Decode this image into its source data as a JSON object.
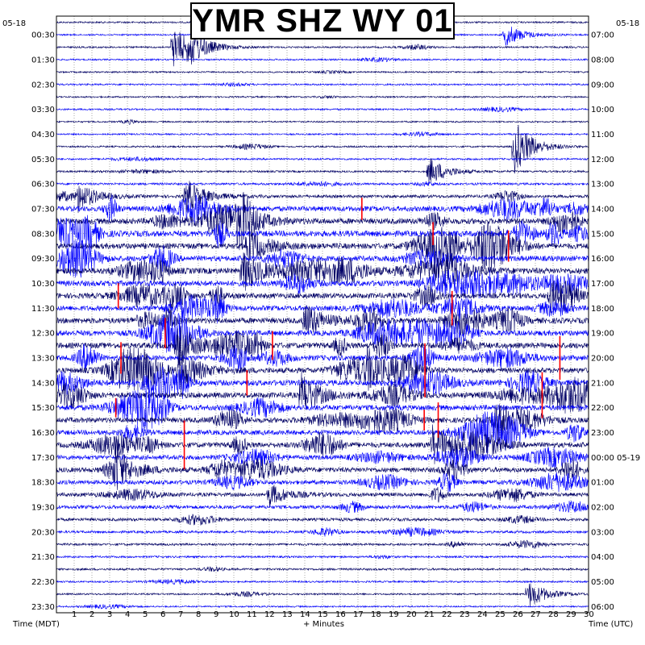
{
  "title": "YMR SHZ WY 01",
  "left_date": "05-18",
  "right_date": "05-18",
  "xlabel": "+ Minutes",
  "left_axis_label": "Time (MDT)",
  "right_axis_label": "Time (UTC)",
  "colors": {
    "navy": "#000066",
    "blue": "#0000ff",
    "red": "#ff0000",
    "grid": "#555555",
    "frame": "#000000"
  },
  "chart_data": {
    "type": "line",
    "title": "YMR SHZ WY 01",
    "xlabel": "+ Minutes",
    "x_range": [
      0,
      30
    ],
    "x_ticks": [
      1,
      2,
      3,
      4,
      5,
      6,
      7,
      8,
      9,
      10,
      11,
      12,
      13,
      14,
      15,
      16,
      17,
      18,
      19,
      20,
      21,
      22,
      23,
      24,
      25,
      26,
      27,
      28,
      29,
      30
    ],
    "rows_count": 48,
    "row_minutes": 30,
    "left_ticks": [
      "00:30",
      "01:30",
      "02:30",
      "03:30",
      "04:30",
      "05:30",
      "06:30",
      "07:30",
      "08:30",
      "09:30",
      "10:30",
      "11:30",
      "12:30",
      "13:30",
      "14:30",
      "15:30",
      "16:30",
      "17:30",
      "18:30",
      "19:30",
      "20:30",
      "21:30",
      "22:30",
      "23:30"
    ],
    "right_ticks": [
      "07:00",
      "08:00",
      "09:00",
      "10:00",
      "11:00",
      "12:00",
      "13:00",
      "14:00",
      "15:00",
      "16:00",
      "17:00",
      "18:00",
      "19:00",
      "20:00",
      "21:00",
      "22:00",
      "23:00",
      "00:00 05-19",
      "01:00",
      "02:00",
      "03:00",
      "04:00",
      "05:00",
      "06:00"
    ],
    "grid": true,
    "trace_colors": [
      "navy",
      "blue"
    ],
    "clipped_color": "red",
    "row_activity": [
      0.15,
      0.12,
      0.15,
      0.12,
      0.12,
      0.15,
      0.12,
      0.15,
      0.12,
      0.12,
      0.15,
      0.18,
      0.2,
      0.25,
      0.4,
      0.8,
      0.9,
      0.95,
      0.9,
      0.85,
      0.95,
      0.9,
      0.85,
      0.8,
      0.9,
      0.85,
      0.9,
      0.85,
      0.85,
      0.9,
      0.9,
      0.85,
      0.8,
      0.75,
      0.8,
      0.7,
      0.75,
      0.65,
      0.55,
      0.5,
      0.4,
      0.3,
      0.25,
      0.2,
      0.22,
      0.15,
      0.15,
      0.12
    ],
    "events": [
      {
        "row": 1,
        "minute": 25.3,
        "amp": 1.6
      },
      {
        "row": 2,
        "minute": 6.6,
        "amp": 3.0
      },
      {
        "row": 2,
        "minute": 7.5,
        "amp": 1.8
      },
      {
        "row": 10,
        "minute": 25.8,
        "amp": 4.0
      },
      {
        "row": 12,
        "minute": 21.0,
        "amp": 2.0
      },
      {
        "row": 14,
        "minute": 7.3,
        "amp": 2.5
      },
      {
        "row": 14,
        "minute": 1.2,
        "amp": 2.0
      },
      {
        "row": 16,
        "minute": 10.3,
        "amp": 3.0
      },
      {
        "row": 18,
        "minute": 10.8,
        "amp": 2.5
      },
      {
        "row": 20,
        "minute": 10.5,
        "amp": 3.0
      },
      {
        "row": 20,
        "minute": 22.0,
        "amp": 2.5
      },
      {
        "row": 22,
        "minute": 27.8,
        "amp": 2.0
      },
      {
        "row": 24,
        "minute": 14.0,
        "amp": 2.5
      },
      {
        "row": 26,
        "minute": 6.8,
        "amp": 3.0
      },
      {
        "row": 28,
        "minute": 6.9,
        "amp": 3.5
      },
      {
        "row": 28,
        "minute": 17.5,
        "amp": 2.5
      },
      {
        "row": 30,
        "minute": 13.8,
        "amp": 3.0
      },
      {
        "row": 32,
        "minute": 24.7,
        "amp": 2.5
      },
      {
        "row": 34,
        "minute": 21.2,
        "amp": 2.5
      },
      {
        "row": 36,
        "minute": 3.3,
        "amp": 3.0
      },
      {
        "row": 38,
        "minute": 12.0,
        "amp": 1.5
      },
      {
        "row": 46,
        "minute": 26.6,
        "amp": 2.0
      }
    ]
  }
}
